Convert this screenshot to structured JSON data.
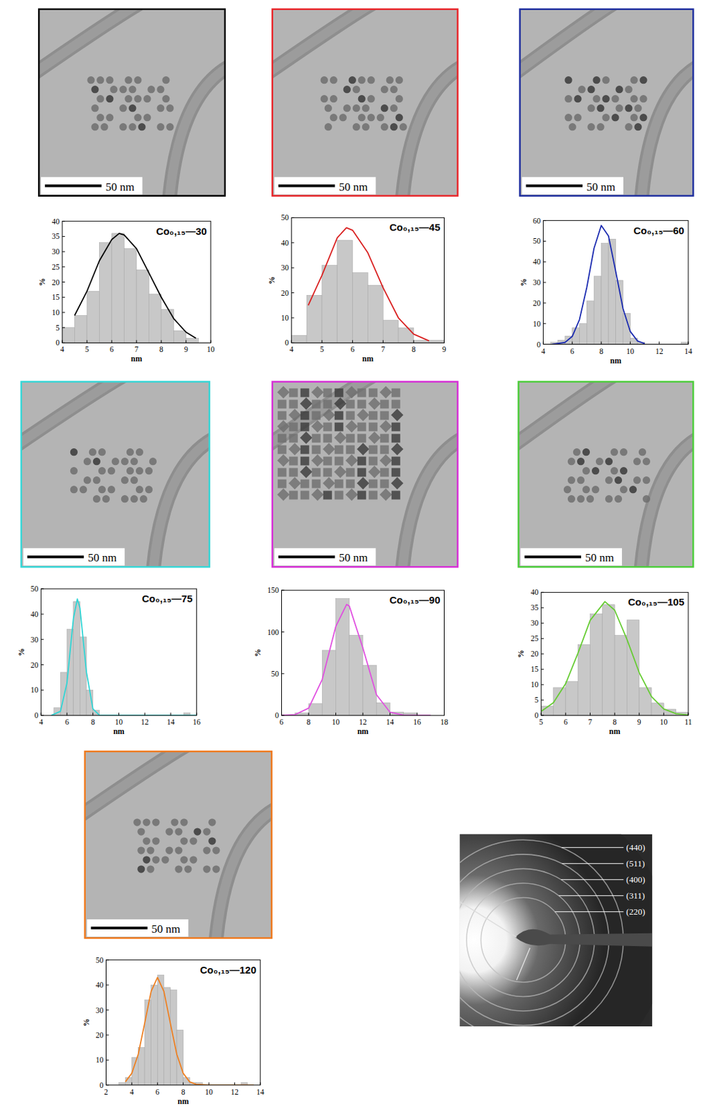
{
  "chart_data": [
    {
      "type": "histogram",
      "title": "Co₀,₁₅—30",
      "x_label": "nm",
      "y_label": "%",
      "color": "#c8c8c8",
      "bins": [
        4,
        4.5,
        5,
        5.5,
        6,
        6.5,
        7,
        7.5,
        8,
        8.5,
        9,
        9.5
      ],
      "counts": [
        5,
        9,
        17,
        33,
        36,
        31,
        24,
        16,
        11,
        4,
        1.5
      ],
      "xlim": [
        4,
        10
      ],
      "xticks": [
        4,
        5,
        6,
        7,
        8,
        9,
        10
      ],
      "ylim": [
        0,
        40
      ],
      "yticks": [
        0,
        5,
        10,
        15,
        20,
        25,
        30,
        35,
        40
      ],
      "series": [
        {
          "type": "line",
          "color": "#000000",
          "x": [
            4.5,
            5,
            5.5,
            6,
            6.3,
            6.5,
            7,
            7.5,
            8,
            8.5,
            9,
            9.4
          ],
          "values": [
            9,
            17,
            27,
            34,
            36,
            35.5,
            31,
            23,
            15,
            8,
            3.5,
            1.5
          ]
        }
      ]
    },
    {
      "type": "histogram",
      "title": "Co₀,₁₅—45",
      "x_label": "nm",
      "y_label": "%",
      "color": "#c8c8c8",
      "bins": [
        4,
        4.5,
        5,
        5.5,
        6,
        6.5,
        7,
        7.5,
        8,
        8.5,
        9
      ],
      "counts": [
        3,
        19,
        31,
        41,
        28,
        23,
        9,
        6,
        1,
        1
      ],
      "xlim": [
        4,
        9
      ],
      "xticks": [
        4,
        5,
        6,
        7,
        8,
        9
      ],
      "ylim": [
        0,
        50
      ],
      "yticks": [
        0,
        10,
        20,
        30,
        40,
        50
      ],
      "series": [
        {
          "type": "line",
          "color": "#d92020",
          "x": [
            4.55,
            5,
            5.5,
            5.8,
            6,
            6.5,
            7,
            7.5,
            8,
            8.5
          ],
          "values": [
            15,
            27,
            42,
            46,
            45,
            36,
            22,
            10,
            3.5,
            0.8
          ]
        }
      ]
    },
    {
      "type": "histogram",
      "title": "Co₀,₁₅—60",
      "x_label": "nm",
      "y_label": "%",
      "color": "#c8c8c8",
      "bins": [
        4.5,
        5,
        5.5,
        6,
        6.5,
        7,
        7.5,
        8,
        8.5,
        9,
        9.5,
        10,
        10.5,
        11,
        11.5,
        12,
        12.5,
        13,
        13.5,
        14
      ],
      "counts": [
        1,
        2,
        4,
        8,
        10,
        21,
        33,
        49,
        51,
        31,
        15,
        3,
        1,
        0,
        0,
        0,
        0,
        0,
        1
      ],
      "xlim": [
        4,
        14
      ],
      "xticks": [
        4,
        6,
        8,
        10,
        12,
        14
      ],
      "ylim": [
        0,
        60
      ],
      "yticks": [
        0,
        10,
        20,
        30,
        40,
        50,
        60
      ],
      "series": [
        {
          "type": "line",
          "color": "#1a2ab0",
          "x": [
            4.6,
            5.5,
            6,
            6.5,
            7,
            7.5,
            8,
            8.5,
            9,
            9.5,
            10,
            10.5,
            11
          ],
          "values": [
            0,
            0.9,
            3.8,
            12,
            27.5,
            46.5,
            57.6,
            52.5,
            35.2,
            17.3,
            6.2,
            1.6,
            0.3
          ]
        }
      ]
    },
    {
      "type": "histogram",
      "title": "Co₀,₁₅—75",
      "x_label": "nm",
      "y_label": "%",
      "color": "#c8c8c8",
      "bins": [
        5,
        5.5,
        6,
        6.5,
        7,
        7.5,
        8,
        8.5,
        9,
        9.5,
        10,
        10.5,
        11,
        11.5,
        12,
        12.5,
        13,
        13.5,
        14,
        14.5,
        15,
        15.5
      ],
      "counts": [
        3,
        17,
        34,
        45,
        31,
        10,
        2,
        0,
        0,
        0,
        0,
        0,
        0,
        0,
        0,
        0,
        0,
        0,
        0,
        0,
        1
      ],
      "xlim": [
        4,
        16
      ],
      "xticks": [
        4,
        6,
        8,
        10,
        12,
        14,
        16
      ],
      "ylim": [
        0,
        50
      ],
      "yticks": [
        0,
        10,
        20,
        30,
        40,
        50
      ],
      "series": [
        {
          "type": "line",
          "color": "#30d5d5",
          "x": [
            4.8,
            5.5,
            6,
            6.5,
            6.8,
            7,
            7.5,
            8,
            8.5,
            9,
            10,
            12,
            14,
            16
          ],
          "values": [
            0,
            1.6,
            12.8,
            38.4,
            46,
            42.5,
            17.2,
            2.6,
            0.1,
            0,
            0,
            0,
            0,
            0
          ]
        }
      ]
    },
    {
      "type": "histogram",
      "title": "Co₀,₁₅—90",
      "x_label": "nm",
      "y_label": "%",
      "color": "#c8c8c8",
      "bins": [
        7,
        8,
        9,
        10,
        11,
        12,
        13,
        14,
        15,
        16
      ],
      "counts": [
        3,
        14,
        78,
        140,
        96,
        60,
        15,
        4,
        3
      ],
      "xlim": [
        6,
        18
      ],
      "xticks": [
        6,
        8,
        10,
        12,
        14,
        16,
        18
      ],
      "ylim": [
        0,
        150
      ],
      "yticks": [
        0,
        50,
        100,
        150
      ],
      "series": [
        {
          "type": "line",
          "color": "#e050e0",
          "x": [
            6,
            7,
            8,
            9,
            10,
            10.8,
            11,
            12,
            13,
            14,
            15,
            16,
            17
          ],
          "values": [
            0,
            0.9,
            8.7,
            43,
            106.5,
            133,
            131,
            80.7,
            24.8,
            3.8,
            0.3,
            0,
            0
          ]
        }
      ]
    },
    {
      "type": "histogram",
      "title": "Co₀,₁₅—105",
      "x_label": "nm",
      "y_label": "%",
      "color": "#c8c8c8",
      "bins": [
        5,
        5.5,
        6,
        6.5,
        7,
        7.5,
        8,
        8.5,
        9,
        9.5,
        10,
        10.5,
        11
      ],
      "counts": [
        3,
        9,
        11,
        23,
        33,
        36,
        26,
        31,
        9,
        4,
        2,
        1
      ],
      "xlim": [
        5,
        11
      ],
      "xticks": [
        5,
        6,
        7,
        8,
        9,
        10,
        11
      ],
      "ylim": [
        0,
        40
      ],
      "yticks": [
        0,
        5,
        10,
        15,
        20,
        25,
        30,
        35,
        40
      ],
      "series": [
        {
          "type": "line",
          "color": "#66cc33",
          "x": [
            5,
            5.5,
            6,
            6.5,
            7,
            7.6,
            8,
            8.5,
            9,
            9.5,
            10,
            10.5,
            11
          ],
          "values": [
            1.3,
            4.1,
            10.3,
            20.2,
            30.9,
            37,
            34.2,
            24.7,
            13.9,
            6.1,
            2.1,
            0.55,
            0.1
          ]
        }
      ]
    },
    {
      "type": "histogram",
      "title": "Co₀,₁₅—120",
      "x_label": "nm",
      "y_label": "%",
      "color": "#c8c8c8",
      "bins": [
        3,
        3.5,
        4,
        4.5,
        5,
        5.5,
        6,
        6.5,
        7,
        7.5,
        8,
        8.5,
        9,
        9.5,
        10,
        10.5,
        11,
        11.5,
        12,
        12.5,
        13
      ],
      "counts": [
        1,
        3,
        11,
        15,
        34,
        40,
        44,
        39,
        38,
        22,
        3,
        1,
        1,
        0,
        0,
        0,
        0,
        0,
        0,
        1
      ],
      "xlim": [
        2,
        14
      ],
      "xticks": [
        2,
        4,
        6,
        8,
        10,
        12,
        14
      ],
      "ylim": [
        0,
        50
      ],
      "yticks": [
        0,
        10,
        20,
        30,
        40,
        50
      ],
      "series": [
        {
          "type": "line",
          "color": "#ee8022",
          "x": [
            3.5,
            4,
            4.5,
            5,
            5.5,
            6,
            6.5,
            7,
            7.5,
            8,
            8.5,
            9,
            10,
            12,
            13.5
          ],
          "values": [
            1.3,
            4.7,
            12.3,
            24.7,
            37.4,
            43,
            37.4,
            24.7,
            12.3,
            4.7,
            1.3,
            0.3,
            0,
            0,
            0
          ]
        }
      ]
    }
  ],
  "images": [
    {
      "scale_bar": "50 nm",
      "color": "#000000"
    },
    {
      "scale_bar": "50 nm",
      "color": "#e8262a"
    },
    {
      "scale_bar": "50 nm",
      "color": "#1f2f9f"
    },
    {
      "scale_bar": "50 nm",
      "color": "#36d6d6"
    },
    {
      "scale_bar": "50 nm",
      "color": "#d62ed6"
    },
    {
      "scale_bar": "50 nm",
      "color": "#4ccd3a"
    },
    {
      "scale_bar": "50 nm",
      "color": "#f07a1e"
    }
  ],
  "diffraction": {
    "rings": [
      "(440)",
      "(511)",
      "(400)",
      "(311)",
      "(220)"
    ]
  }
}
